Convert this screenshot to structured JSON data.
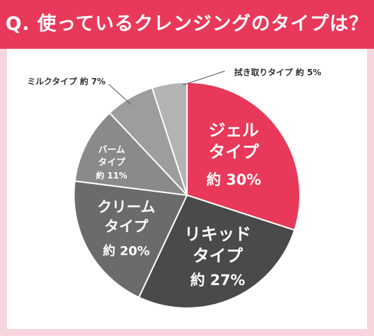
{
  "header": {
    "title": "Q. 使っているクレンジングのタイプは？"
  },
  "colors": {
    "accent": "#e8395a",
    "page_bg": "#f7d5dc",
    "card_bg": "#ffffff"
  },
  "chart_data": {
    "type": "pie",
    "title": "Q. 使っているクレンジングのタイプは？",
    "start": "12 o'clock",
    "direction": "clockwise",
    "slices": [
      {
        "label": "ジェルタイプ",
        "value": 30,
        "display": "約 30%",
        "color": "#e8395a"
      },
      {
        "label": "リキッドタイプ",
        "value": 27,
        "display": "約 27%",
        "color": "#4a4a4a"
      },
      {
        "label": "クリームタイプ",
        "value": 20,
        "display": "約 20%",
        "color": "#6b6b6b"
      },
      {
        "label": "バームタイプ",
        "value": 11,
        "display": "約 11%",
        "color": "#8a8a8a"
      },
      {
        "label": "ミルクタイプ",
        "value": 7,
        "display": "約 7%",
        "color": "#9d9d9d"
      },
      {
        "label": "拭き取りタイプ",
        "value": 5,
        "display": "約 5%",
        "color": "#b3b3b3"
      }
    ],
    "labels": {
      "gel": {
        "line1": "ジェル",
        "line2": "タイプ",
        "pct": "約 30%"
      },
      "liquid": {
        "line1": "リキッド",
        "line2": "タイプ",
        "pct": "約 27%"
      },
      "cream": {
        "line1": "クリーム",
        "line2": "タイプ",
        "pct": "約 20%"
      },
      "balm": {
        "line1": "バーム",
        "line2": "タイプ",
        "pct": "約 11%"
      },
      "milk": {
        "text": "ミルクタイプ 約 7%"
      },
      "wipe": {
        "text": "拭き取りタイプ 約 5%"
      }
    }
  }
}
